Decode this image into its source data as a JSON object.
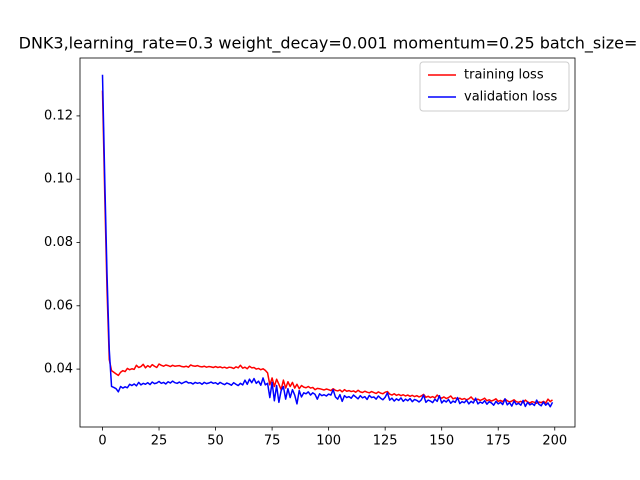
{
  "chart_data": {
    "type": "line",
    "title": "DNK3,learning_rate=0.3  weight_decay=0.001  momentum=0.25  batch_size=",
    "x": [
      0,
      1,
      2,
      3,
      4,
      5,
      6,
      7,
      8,
      9,
      10,
      11,
      12,
      13,
      14,
      15,
      16,
      17,
      18,
      19,
      20,
      21,
      22,
      23,
      24,
      25,
      26,
      27,
      28,
      29,
      30,
      31,
      32,
      33,
      34,
      35,
      36,
      37,
      38,
      39,
      40,
      41,
      42,
      43,
      44,
      45,
      46,
      47,
      48,
      49,
      50,
      51,
      52,
      53,
      54,
      55,
      56,
      57,
      58,
      59,
      60,
      61,
      62,
      63,
      64,
      65,
      66,
      67,
      68,
      69,
      70,
      71,
      72,
      73,
      74,
      75,
      76,
      77,
      78,
      79,
      80,
      81,
      82,
      83,
      84,
      85,
      86,
      87,
      88,
      89,
      90,
      91,
      92,
      93,
      94,
      95,
      96,
      97,
      98,
      99,
      100,
      101,
      102,
      103,
      104,
      105,
      106,
      107,
      108,
      109,
      110,
      111,
      112,
      113,
      114,
      115,
      116,
      117,
      118,
      119,
      120,
      121,
      122,
      123,
      124,
      125,
      126,
      127,
      128,
      129,
      130,
      131,
      132,
      133,
      134,
      135,
      136,
      137,
      138,
      139,
      140,
      141,
      142,
      143,
      144,
      145,
      146,
      147,
      148,
      149,
      150,
      151,
      152,
      153,
      154,
      155,
      156,
      157,
      158,
      159,
      160,
      161,
      162,
      163,
      164,
      165,
      166,
      167,
      168,
      169,
      170,
      171,
      172,
      173,
      174,
      175,
      176,
      177,
      178,
      179,
      180,
      181,
      182,
      183,
      184,
      185,
      186,
      187,
      188,
      189,
      190,
      191,
      192,
      193,
      194,
      195,
      196,
      197,
      198,
      199
    ],
    "series": [
      {
        "name": "training loss",
        "color": "#ff0000",
        "values": [
          0.128,
          0.095,
          0.065,
          0.043,
          0.0395,
          0.039,
          0.0385,
          0.038,
          0.039,
          0.0395,
          0.0392,
          0.0402,
          0.0398,
          0.0401,
          0.0399,
          0.0412,
          0.0405,
          0.0408,
          0.0415,
          0.0404,
          0.0411,
          0.0406,
          0.0414,
          0.0409,
          0.0405,
          0.0416,
          0.0412,
          0.0409,
          0.0413,
          0.0411,
          0.0408,
          0.0412,
          0.0409,
          0.041,
          0.0411,
          0.0408,
          0.0407,
          0.0409,
          0.0406,
          0.0413,
          0.041,
          0.0409,
          0.0411,
          0.0408,
          0.0407,
          0.0409,
          0.0406,
          0.0408,
          0.0407,
          0.0405,
          0.0408,
          0.0405,
          0.0407,
          0.0404,
          0.0406,
          0.0403,
          0.0406,
          0.0405,
          0.0402,
          0.0407,
          0.0404,
          0.0412,
          0.0403,
          0.0406,
          0.0401,
          0.0409,
          0.0404,
          0.0405,
          0.04,
          0.0402,
          0.0398,
          0.0401,
          0.0396,
          0.0388,
          0.035,
          0.0372,
          0.0345,
          0.0368,
          0.0352,
          0.0335,
          0.0365,
          0.034,
          0.036,
          0.0345,
          0.0358,
          0.034,
          0.0352,
          0.0338,
          0.0348,
          0.0343,
          0.0341,
          0.0345,
          0.034,
          0.0342,
          0.0335,
          0.0339,
          0.0338,
          0.0336,
          0.0334,
          0.0337,
          0.0335,
          0.0332,
          0.0338,
          0.0333,
          0.0331,
          0.0334,
          0.0328,
          0.0335,
          0.033,
          0.0332,
          0.0329,
          0.0331,
          0.0327,
          0.0333,
          0.0328,
          0.0326,
          0.033,
          0.0327,
          0.0325,
          0.0329,
          0.0326,
          0.0323,
          0.0328,
          0.0324,
          0.0322,
          0.0327,
          0.0329,
          0.0321,
          0.0318,
          0.0322,
          0.0317,
          0.032,
          0.0316,
          0.0319,
          0.0315,
          0.0318,
          0.0314,
          0.0317,
          0.0313,
          0.0316,
          0.0312,
          0.0315,
          0.032,
          0.0311,
          0.0314,
          0.031,
          0.0313,
          0.0309,
          0.0318,
          0.0311,
          0.0308,
          0.0312,
          0.0307,
          0.031,
          0.0315,
          0.0306,
          0.0309,
          0.0305,
          0.0308,
          0.0304,
          0.0307,
          0.0303,
          0.0306,
          0.0312,
          0.0304,
          0.0302,
          0.0305,
          0.0301,
          0.0304,
          0.0308,
          0.03,
          0.0303,
          0.0299,
          0.0302,
          0.0306,
          0.0298,
          0.0301,
          0.0297,
          0.0305,
          0.03,
          0.0296,
          0.0299,
          0.0303,
          0.0297,
          0.0295,
          0.0298,
          0.0294,
          0.0302,
          0.0296,
          0.0293,
          0.0297,
          0.0295,
          0.0292,
          0.0296,
          0.0294,
          0.0298,
          0.0293,
          0.0305,
          0.0297,
          0.0303
        ]
      },
      {
        "name": "validation loss",
        "color": "#0000ff",
        "values": [
          0.133,
          0.1,
          0.07,
          0.046,
          0.0345,
          0.0342,
          0.0338,
          0.0328,
          0.0345,
          0.034,
          0.0344,
          0.0341,
          0.0352,
          0.0348,
          0.0353,
          0.0347,
          0.0358,
          0.035,
          0.0355,
          0.0352,
          0.0357,
          0.0351,
          0.0359,
          0.0354,
          0.0356,
          0.0361,
          0.0355,
          0.0358,
          0.0353,
          0.036,
          0.0356,
          0.0362,
          0.0357,
          0.0355,
          0.0359,
          0.0354,
          0.0358,
          0.0361,
          0.0356,
          0.0357,
          0.0353,
          0.0358,
          0.0355,
          0.0357,
          0.0352,
          0.0358,
          0.0354,
          0.0356,
          0.0359,
          0.0355,
          0.0357,
          0.0352,
          0.0358,
          0.0354,
          0.0351,
          0.0356,
          0.0353,
          0.0349,
          0.0357,
          0.0352,
          0.0348,
          0.0355,
          0.035,
          0.0365,
          0.0352,
          0.0368,
          0.0357,
          0.037,
          0.0355,
          0.0362,
          0.0349,
          0.0372,
          0.035,
          0.0355,
          0.031,
          0.0358,
          0.03,
          0.0348,
          0.0295,
          0.0332,
          0.0345,
          0.0305,
          0.0338,
          0.031,
          0.0335,
          0.0318,
          0.029,
          0.0332,
          0.0312,
          0.0325,
          0.0322,
          0.0328,
          0.0318,
          0.0325,
          0.032,
          0.0305,
          0.0322,
          0.0316,
          0.0319,
          0.0315,
          0.0321,
          0.0318,
          0.0335,
          0.0312,
          0.0305,
          0.0319,
          0.0298,
          0.0316,
          0.031,
          0.0313,
          0.0308,
          0.0318,
          0.0312,
          0.0306,
          0.0316,
          0.0309,
          0.0313,
          0.0304,
          0.0317,
          0.031,
          0.0312,
          0.0305,
          0.0315,
          0.0308,
          0.0303,
          0.0311,
          0.0325,
          0.0302,
          0.0308,
          0.0299,
          0.0306,
          0.0301,
          0.0309,
          0.0298,
          0.0305,
          0.03,
          0.0307,
          0.0297,
          0.0304,
          0.0301,
          0.0296,
          0.0303,
          0.0318,
          0.0295,
          0.0302,
          0.0299,
          0.0294,
          0.0305,
          0.0298,
          0.0316,
          0.0293,
          0.0301,
          0.0296,
          0.0304,
          0.0292,
          0.0299,
          0.0295,
          0.031,
          0.0291,
          0.0297,
          0.0294,
          0.0302,
          0.029,
          0.0298,
          0.0293,
          0.0308,
          0.029,
          0.0296,
          0.0292,
          0.03,
          0.0289,
          0.0297,
          0.0293,
          0.0286,
          0.0298,
          0.029,
          0.0295,
          0.0288,
          0.0306,
          0.0287,
          0.0294,
          0.0283,
          0.0299,
          0.0288,
          0.0292,
          0.0286,
          0.0301,
          0.0282,
          0.0295,
          0.0287,
          0.0291,
          0.0285,
          0.0302,
          0.0289,
          0.0284,
          0.0296,
          0.0286,
          0.0293,
          0.0281,
          0.0295
        ]
      }
    ],
    "xlim": [
      -9.95,
      208.95
    ],
    "xticks": [
      0,
      25,
      50,
      75,
      100,
      125,
      150,
      175,
      200
    ],
    "ylim": [
      0.0217,
      0.1383
    ],
    "yticks": [
      0.04,
      0.06,
      0.08,
      {
        "value": 0.1,
        "label": "0.10"
      },
      0.12
    ],
    "legend": "upper right"
  }
}
